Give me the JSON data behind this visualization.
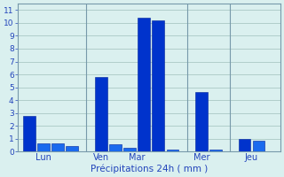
{
  "bars": [
    {
      "x": 1,
      "height": 2.8,
      "color": "#0033cc"
    },
    {
      "x": 2,
      "height": 0.65,
      "color": "#1a6aee"
    },
    {
      "x": 3,
      "height": 0.65,
      "color": "#1a6aee"
    },
    {
      "x": 4,
      "height": 0.4,
      "color": "#1a6aee"
    },
    {
      "x": 6,
      "height": 5.8,
      "color": "#0033cc"
    },
    {
      "x": 7,
      "height": 0.55,
      "color": "#1a6aee"
    },
    {
      "x": 8,
      "height": 0.3,
      "color": "#1a6aee"
    },
    {
      "x": 9,
      "height": 10.4,
      "color": "#0033cc"
    },
    {
      "x": 10,
      "height": 10.2,
      "color": "#0033cc"
    },
    {
      "x": 11,
      "height": 0.15,
      "color": "#1a6aee"
    },
    {
      "x": 13,
      "height": 4.6,
      "color": "#0033cc"
    },
    {
      "x": 14,
      "height": 0.15,
      "color": "#1a6aee"
    },
    {
      "x": 16,
      "height": 1.0,
      "color": "#0033cc"
    },
    {
      "x": 17,
      "height": 0.85,
      "color": "#1a6aee"
    }
  ],
  "day_labels": [
    {
      "x": 2.0,
      "label": "Lun"
    },
    {
      "x": 6.0,
      "label": "Ven"
    },
    {
      "x": 8.5,
      "label": "Mar"
    },
    {
      "x": 13.0,
      "label": "Mer"
    },
    {
      "x": 16.5,
      "label": "Jeu"
    }
  ],
  "day_lines": [
    5,
    12,
    15
  ],
  "yticks": [
    0,
    1,
    2,
    3,
    4,
    5,
    6,
    7,
    8,
    9,
    10,
    11
  ],
  "ylim": [
    0,
    11.5
  ],
  "xlim": [
    0.2,
    18.5
  ],
  "xlabel": "Précipitations 24h ( mm )",
  "bar_width": 0.85,
  "bg_color": "#daf0ef",
  "grid_color": "#aac8c5",
  "bar_edge_color": "#002299",
  "text_color": "#2244bb",
  "spine_color": "#7799aa",
  "ylabel_fontsize": 6.5,
  "xlabel_fontsize": 7.5,
  "xticklabel_fontsize": 7.0
}
